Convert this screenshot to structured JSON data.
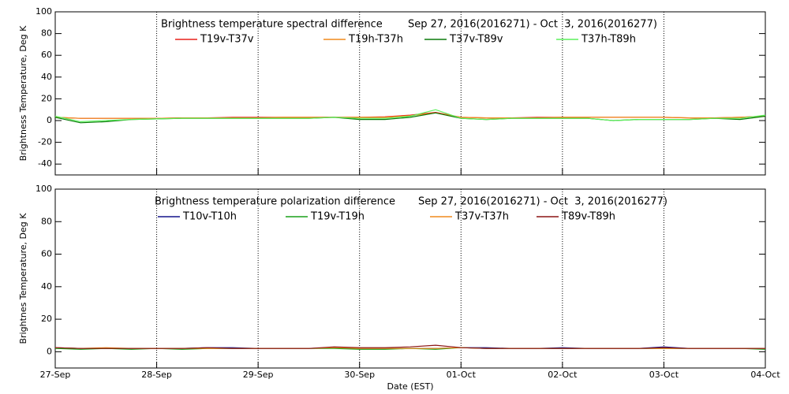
{
  "chart_data": [
    {
      "type": "line",
      "title": "Brightness temperature spectral difference",
      "period": "Sep 27, 2016(2016271) - Oct  3, 2016(2016277)",
      "ylabel": "Brightness Temperature, Deg K",
      "xlim": [
        0,
        7
      ],
      "xticks": [
        0,
        1,
        2,
        3,
        4,
        5,
        6,
        7
      ],
      "ylim": [
        -50,
        100
      ],
      "yticks": [
        -40,
        -20,
        0,
        20,
        40,
        60,
        80,
        100
      ],
      "x": [
        0,
        0.25,
        0.5,
        0.75,
        1,
        1.25,
        1.5,
        1.75,
        2,
        2.25,
        2.5,
        2.75,
        3,
        3.25,
        3.5,
        3.75,
        4,
        4.25,
        4.5,
        4.75,
        5,
        5.25,
        5.5,
        5.75,
        6,
        6.25,
        6.5,
        6.75,
        7
      ],
      "series": [
        {
          "name": "T19v-T37v",
          "color": "#e8201a",
          "values": [
            3,
            2,
            2,
            2,
            2,
            2.5,
            2.5,
            3,
            3,
            3,
            3,
            3,
            3,
            3.5,
            5,
            7.5,
            3,
            2.5,
            2.5,
            3,
            3,
            3,
            3,
            3,
            3,
            2.5,
            2.5,
            3,
            4
          ]
        },
        {
          "name": "T19h-T37h",
          "color": "#f08a1c",
          "values": [
            3,
            2,
            2,
            2,
            2,
            2.5,
            2.5,
            2.5,
            2.5,
            3,
            3,
            3,
            3,
            3,
            4.5,
            7,
            3,
            2.5,
            2.5,
            2.5,
            3,
            3,
            3,
            3,
            3,
            2.5,
            2.5,
            3,
            4
          ]
        },
        {
          "name": "T37v-T89v",
          "color": "#0a7a0a",
          "values": [
            3,
            -2,
            -1,
            1,
            1.5,
            2,
            2,
            2,
            2,
            2,
            2,
            3,
            1,
            1,
            3,
            7,
            2,
            1,
            2,
            2,
            2,
            2,
            0,
            1,
            1,
            1,
            2,
            1,
            4
          ]
        },
        {
          "name": "T37h-T89h",
          "color": "#5cf05c",
          "values": [
            4,
            -1,
            0,
            1,
            1.5,
            2,
            2,
            2,
            2,
            2,
            2,
            3,
            2,
            2,
            4,
            10,
            2,
            1,
            2,
            2,
            2,
            2,
            0,
            1,
            1,
            1,
            2,
            2,
            5
          ]
        }
      ]
    },
    {
      "type": "line",
      "title": "Brightness temperature polarization difference",
      "period": "Sep 27, 2016(2016271) - Oct  3, 2016(2016277)",
      "ylabel": "Brightnes Temperature, Deg K",
      "xlabel": "Date (EST)",
      "xlim": [
        0,
        7
      ],
      "xticks": [
        {
          "value": 0,
          "label": "27-Sep"
        },
        {
          "value": 1,
          "label": "28-Sep"
        },
        {
          "value": 2,
          "label": "29-Sep"
        },
        {
          "value": 3,
          "label": "30-Sep"
        },
        {
          "value": 4,
          "label": "01-Oct"
        },
        {
          "value": 5,
          "label": "02-Oct"
        },
        {
          "value": 6,
          "label": "03-Oct"
        },
        {
          "value": 7,
          "label": "04-Oct"
        }
      ],
      "ylim": [
        -10,
        100
      ],
      "yticks": [
        0,
        20,
        40,
        60,
        80,
        100
      ],
      "x": [
        0,
        0.25,
        0.5,
        0.75,
        1,
        1.25,
        1.5,
        1.75,
        2,
        2.25,
        2.5,
        2.75,
        3,
        3.25,
        3.5,
        3.75,
        4,
        4.25,
        4.5,
        4.75,
        5,
        5.25,
        5.5,
        5.75,
        6,
        6.25,
        6.5,
        6.75,
        7
      ],
      "series": [
        {
          "name": "T10v-T10h",
          "color": "#14148c",
          "values": [
            2.5,
            2,
            2,
            2,
            2,
            2,
            2.5,
            2.5,
            2,
            2,
            2,
            2.5,
            2,
            2,
            2,
            2,
            2.5,
            2.5,
            2,
            2,
            2.5,
            2,
            2,
            2,
            3,
            2,
            2,
            2,
            2
          ]
        },
        {
          "name": "T19v-T19h",
          "color": "#18a018",
          "values": [
            2,
            1.5,
            2,
            1.5,
            2,
            1.5,
            2,
            2,
            2,
            2,
            2,
            2,
            1.5,
            1.5,
            2,
            1.5,
            2.5,
            2,
            2,
            2,
            2,
            2,
            2,
            2,
            2,
            2,
            2,
            2,
            1.5
          ]
        },
        {
          "name": "T37v-T37h",
          "color": "#f08a1c",
          "values": [
            2.5,
            2,
            2.5,
            2,
            2,
            2,
            2,
            2,
            2,
            2,
            2,
            2.5,
            2,
            2,
            2,
            2,
            2.5,
            2,
            2,
            2,
            2,
            2,
            2,
            2,
            2,
            2,
            2,
            2,
            2
          ]
        },
        {
          "name": "T89v-T89h",
          "color": "#8c1414",
          "values": [
            2.5,
            2,
            2,
            2,
            2,
            2,
            2.5,
            2,
            2,
            2,
            2,
            3,
            2.5,
            2.5,
            3,
            4,
            2.5,
            2,
            2,
            2,
            2,
            2,
            2,
            2,
            2.5,
            2,
            2,
            2,
            2
          ]
        }
      ]
    }
  ]
}
